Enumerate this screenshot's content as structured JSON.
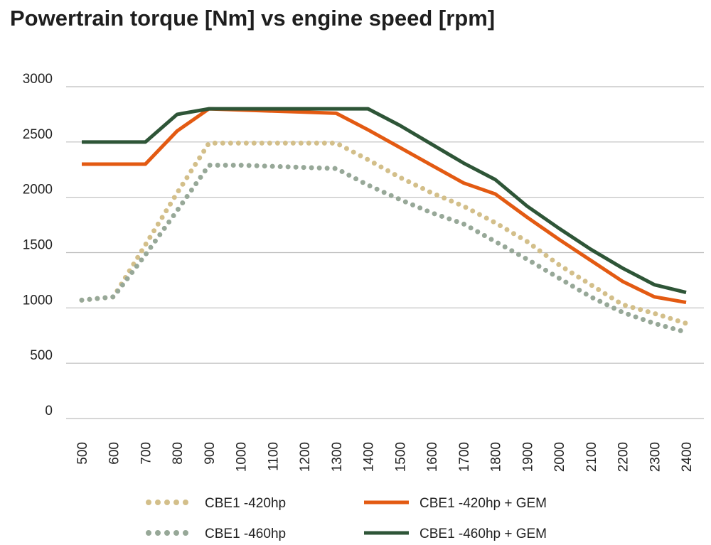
{
  "chart_data": {
    "type": "line",
    "title": "Powertrain torque [Nm] vs engine speed [rpm]",
    "xlabel": "",
    "ylabel": "",
    "x": [
      500,
      600,
      700,
      800,
      900,
      1000,
      1100,
      1200,
      1300,
      1400,
      1500,
      1600,
      1700,
      1800,
      1900,
      2000,
      2100,
      2200,
      2300,
      2400
    ],
    "ylim": [
      0,
      3000
    ],
    "yticks": [
      0,
      500,
      1000,
      1500,
      2000,
      2500,
      3000
    ],
    "grid": "horizontal",
    "legend": "bottom",
    "series": [
      {
        "name": "CBE1 -420hp",
        "style": "dotted",
        "color": "#d3bf8a",
        "values": [
          1070,
          1100,
          1570,
          2040,
          2490,
          2490,
          2490,
          2490,
          2490,
          2340,
          2180,
          2040,
          1920,
          1770,
          1600,
          1390,
          1210,
          1030,
          950,
          860
        ]
      },
      {
        "name": "CBE1 -420hp + GEM",
        "style": "solid",
        "color": "#e35a12",
        "values": [
          2300,
          2300,
          2300,
          2600,
          2800,
          2790,
          2780,
          2770,
          2760,
          2610,
          2450,
          2290,
          2130,
          2030,
          1820,
          1620,
          1430,
          1240,
          1100,
          1050
        ]
      },
      {
        "name": "CBE1 -460hp",
        "style": "dotted",
        "color": "#97a898",
        "values": [
          1070,
          1100,
          1480,
          1880,
          2290,
          2290,
          2280,
          2270,
          2260,
          2110,
          1980,
          1860,
          1760,
          1600,
          1440,
          1270,
          1100,
          960,
          860,
          780
        ]
      },
      {
        "name": "CBE1 -460hp + GEM",
        "style": "solid",
        "color": "#2e5537",
        "values": [
          2500,
          2500,
          2500,
          2750,
          2800,
          2800,
          2800,
          2800,
          2800,
          2800,
          2650,
          2480,
          2310,
          2160,
          1920,
          1720,
          1530,
          1360,
          1210,
          1140
        ]
      }
    ]
  }
}
